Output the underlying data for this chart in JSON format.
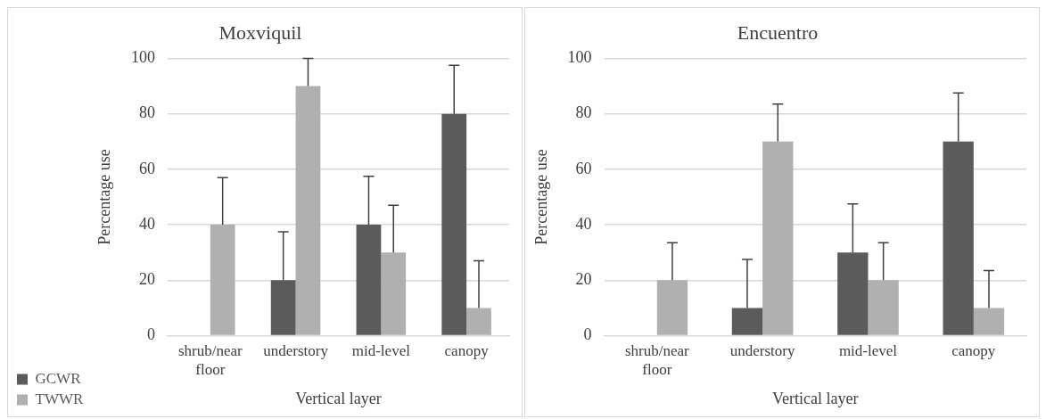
{
  "chart_data": [
    {
      "type": "bar",
      "title": "Moxviquil",
      "xlabel": "Vertical layer",
      "ylabel": "Percentage use",
      "categories": [
        [
          "shrub/near",
          "floor"
        ],
        "understory",
        "mid-level",
        "canopy"
      ],
      "series": [
        {
          "name": "GCWR",
          "color": "#5b5b5b",
          "values": [
            0,
            20,
            40,
            80
          ],
          "errors": [
            null,
            [
              20,
              37.5
            ],
            [
              40,
              57.5
            ],
            [
              80,
              97.5
            ]
          ]
        },
        {
          "name": "TWWR",
          "color": "#b0b0b0",
          "values": [
            40,
            90,
            30,
            10
          ],
          "errors": [
            [
              40,
              57
            ],
            [
              90,
              100
            ],
            [
              30,
              47
            ],
            [
              10,
              27
            ]
          ]
        }
      ],
      "ylim": [
        0,
        100
      ],
      "yticks": [
        0,
        20,
        40,
        60,
        80,
        100
      ],
      "grid": "y",
      "legend": "bottom left"
    },
    {
      "type": "bar",
      "title": "Encuentro",
      "xlabel": "Vertical layer",
      "ylabel": "Percentage use",
      "categories": [
        [
          "shrub/near",
          "floor"
        ],
        "understory",
        "mid-level",
        "canopy"
      ],
      "series": [
        {
          "color": "#5b5b5b",
          "values": [
            0,
            10,
            30,
            70
          ],
          "errors": [
            null,
            [
              10,
              27.5
            ],
            [
              30,
              47.5
            ],
            [
              70,
              87.5
            ]
          ]
        },
        {
          "color": "#b0b0b0",
          "values": [
            20,
            70,
            20,
            10
          ],
          "errors": [
            [
              20,
              33.5
            ],
            [
              70,
              83.5
            ],
            [
              20,
              33.5
            ],
            [
              10,
              23.5
            ]
          ]
        }
      ],
      "ylim": [
        0,
        100
      ],
      "yticks": [
        0,
        20,
        40,
        60,
        80,
        100
      ],
      "grid": "y",
      "legend": false
    }
  ]
}
